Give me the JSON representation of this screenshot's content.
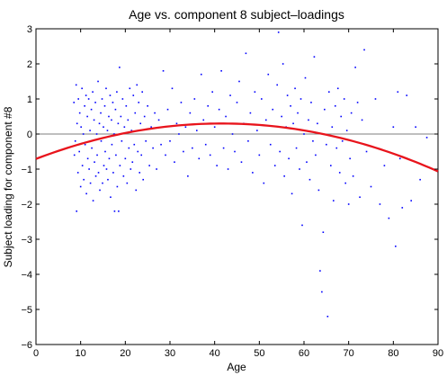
{
  "chart_data": {
    "type": "scatter",
    "title": "Age vs. component 8 subject–loadings",
    "xlabel": "Age",
    "ylabel": "Subject loading for component #8",
    "xlim": [
      0,
      90
    ],
    "ylim": [
      -6,
      3
    ],
    "x_ticks": [
      0,
      10,
      20,
      30,
      40,
      50,
      60,
      70,
      80,
      90
    ],
    "y_ticks": [
      3,
      2,
      1,
      0,
      -1,
      -2,
      -3,
      -4,
      -5,
      -6
    ],
    "grid": false,
    "zero_line": true,
    "series": [
      {
        "kind": "points",
        "color": "#0000ff",
        "points": [
          [
            8.5,
            0.9
          ],
          [
            8.6,
            -0.6
          ],
          [
            8.8,
            -0.2
          ],
          [
            9.0,
            1.4
          ],
          [
            9.1,
            -2.2
          ],
          [
            9.2,
            0.3
          ],
          [
            9.4,
            -1.1
          ],
          [
            9.5,
            1.0
          ],
          [
            9.7,
            -0.5
          ],
          [
            9.8,
            0.6
          ],
          [
            10.0,
            -1.5
          ],
          [
            10.1,
            0.2
          ],
          [
            10.3,
            1.3
          ],
          [
            10.4,
            -0.9
          ],
          [
            10.6,
            0.0
          ],
          [
            10.7,
            -1.3
          ],
          [
            10.9,
            0.8
          ],
          [
            11.0,
            -0.3
          ],
          [
            11.2,
            1.1
          ],
          [
            11.3,
            -1.7
          ],
          [
            11.5,
            0.5
          ],
          [
            11.6,
            -0.7
          ],
          [
            11.8,
            1.0
          ],
          [
            11.9,
            -1.0
          ],
          [
            12.1,
            0.1
          ],
          [
            12.2,
            -1.4
          ],
          [
            12.4,
            0.7
          ],
          [
            12.5,
            -0.4
          ],
          [
            12.7,
            1.2
          ],
          [
            12.8,
            -1.9
          ],
          [
            13.0,
            0.4
          ],
          [
            13.1,
            -0.8
          ],
          [
            13.3,
            0.9
          ],
          [
            13.4,
            -1.2
          ],
          [
            13.6,
            0.0
          ],
          [
            13.7,
            -0.6
          ],
          [
            13.9,
            1.5
          ],
          [
            14.0,
            -1.1
          ],
          [
            14.2,
            0.3
          ],
          [
            14.3,
            -1.6
          ],
          [
            14.5,
            0.6
          ],
          [
            14.6,
            -0.2
          ],
          [
            14.8,
            1.0
          ],
          [
            14.9,
            -1.4
          ],
          [
            15.1,
            0.2
          ],
          [
            15.2,
            -0.9
          ],
          [
            15.4,
            0.8
          ],
          [
            15.5,
            -0.5
          ],
          [
            15.7,
            1.3
          ],
          [
            15.8,
            -1.0
          ],
          [
            16.0,
            0.1
          ],
          [
            16.1,
            -1.3
          ],
          [
            16.3,
            0.5
          ],
          [
            16.4,
            -0.7
          ],
          [
            16.6,
            1.1
          ],
          [
            16.7,
            -1.8
          ],
          [
            16.9,
            0.4
          ],
          [
            17.0,
            -0.3
          ],
          [
            17.2,
            0.9
          ],
          [
            17.3,
            -1.1
          ],
          [
            17.5,
            0.0
          ],
          [
            17.6,
            -2.2
          ],
          [
            17.8,
            0.7
          ],
          [
            17.9,
            -0.6
          ],
          [
            18.1,
            1.2
          ],
          [
            18.2,
            -1.5
          ],
          [
            18.4,
            0.3
          ],
          [
            18.5,
            -2.2
          ],
          [
            18.7,
            1.9
          ],
          [
            18.8,
            -0.9
          ],
          [
            19.0,
            0.5
          ],
          [
            19.2,
            -0.2
          ],
          [
            19.4,
            1.0
          ],
          [
            19.6,
            -1.2
          ],
          [
            19.8,
            0.2
          ],
          [
            20.0,
            -0.7
          ],
          [
            20.2,
            0.8
          ],
          [
            20.4,
            -1.4
          ],
          [
            20.6,
            0.4
          ],
          [
            20.8,
            -0.4
          ],
          [
            21.0,
            1.3
          ],
          [
            21.2,
            -1.0
          ],
          [
            21.4,
            0.1
          ],
          [
            21.6,
            -0.8
          ],
          [
            21.8,
            1.1
          ],
          [
            22.0,
            -0.3
          ],
          [
            22.2,
            0.6
          ],
          [
            22.4,
            -1.6
          ],
          [
            22.6,
            1.4
          ],
          [
            22.8,
            -0.5
          ],
          [
            23.0,
            0.9
          ],
          [
            23.2,
            -1.1
          ],
          [
            23.4,
            0.3
          ],
          [
            23.6,
            -0.6
          ],
          [
            23.8,
            1.2
          ],
          [
            24.0,
            -1.3
          ],
          [
            24.3,
            0.5
          ],
          [
            24.6,
            -0.2
          ],
          [
            25.0,
            0.8
          ],
          [
            25.4,
            -0.9
          ],
          [
            25.8,
            0.2
          ],
          [
            26.2,
            -0.4
          ],
          [
            26.6,
            0.6
          ],
          [
            27.0,
            -1.0
          ],
          [
            27.5,
            0.4
          ],
          [
            28.0,
            -0.3
          ],
          [
            28.5,
            1.8
          ],
          [
            29.0,
            -0.6
          ],
          [
            29.5,
            0.7
          ],
          [
            30.0,
            -0.2
          ],
          [
            30.5,
            1.3
          ],
          [
            31.0,
            -0.8
          ],
          [
            31.5,
            0.3
          ],
          [
            32.0,
            0.0
          ],
          [
            32.5,
            0.9
          ],
          [
            33.0,
            -0.5
          ],
          [
            33.5,
            0.2
          ],
          [
            34.0,
            -1.2
          ],
          [
            34.5,
            0.6
          ],
          [
            35.0,
            -0.4
          ],
          [
            35.5,
            1.0
          ],
          [
            36.0,
            0.1
          ],
          [
            36.5,
            -0.7
          ],
          [
            37.0,
            1.7
          ],
          [
            37.5,
            0.4
          ],
          [
            38.0,
            -0.3
          ],
          [
            38.5,
            0.8
          ],
          [
            39.0,
            -0.6
          ],
          [
            39.5,
            1.2
          ],
          [
            40.0,
            0.2
          ],
          [
            40.5,
            -0.9
          ],
          [
            41.0,
            0.7
          ],
          [
            41.5,
            1.8
          ],
          [
            42.0,
            -0.4
          ],
          [
            42.5,
            0.5
          ],
          [
            43.0,
            -1.0
          ],
          [
            43.5,
            1.1
          ],
          [
            44.0,
            0.0
          ],
          [
            44.5,
            -0.5
          ],
          [
            45.0,
            0.9
          ],
          [
            45.5,
            1.5
          ],
          [
            46.0,
            -0.8
          ],
          [
            46.5,
            0.3
          ],
          [
            47.0,
            2.3
          ],
          [
            47.5,
            -0.2
          ],
          [
            48.0,
            0.6
          ],
          [
            48.5,
            -1.1
          ],
          [
            49.0,
            1.2
          ],
          [
            49.5,
            0.1
          ],
          [
            50.0,
            -0.6
          ],
          [
            50.5,
            1.0
          ],
          [
            51.0,
            -1.4
          ],
          [
            51.5,
            0.4
          ],
          [
            52.0,
            1.7
          ],
          [
            52.5,
            -0.3
          ],
          [
            53.0,
            0.7
          ],
          [
            53.5,
            -0.9
          ],
          [
            54.0,
            1.4
          ],
          [
            54.3,
            2.9
          ],
          [
            54.6,
            -0.5
          ],
          [
            55.0,
            0.5
          ],
          [
            55.3,
            2.0
          ],
          [
            55.6,
            -1.2
          ],
          [
            56.0,
            0.2
          ],
          [
            56.3,
            1.1
          ],
          [
            56.6,
            -0.7
          ],
          [
            57.0,
            0.8
          ],
          [
            57.3,
            -1.7
          ],
          [
            57.6,
            0.3
          ],
          [
            58.0,
            1.3
          ],
          [
            58.3,
            -0.4
          ],
          [
            58.6,
            0.6
          ],
          [
            59.0,
            -1.0
          ],
          [
            59.3,
            1.0
          ],
          [
            59.6,
            -2.6
          ],
          [
            60.0,
            0.0
          ],
          [
            60.3,
            1.6
          ],
          [
            60.6,
            -0.8
          ],
          [
            61.0,
            0.4
          ],
          [
            61.3,
            -1.3
          ],
          [
            61.6,
            0.9
          ],
          [
            62.0,
            -0.2
          ],
          [
            62.3,
            2.2
          ],
          [
            62.6,
            -0.6
          ],
          [
            63.0,
            0.3
          ],
          [
            63.3,
            -1.6
          ],
          [
            63.6,
            -3.9
          ],
          [
            64.0,
            -4.5
          ],
          [
            64.3,
            -2.8
          ],
          [
            64.6,
            0.7
          ],
          [
            65.0,
            -0.3
          ],
          [
            65.3,
            -5.2
          ],
          [
            65.6,
            1.2
          ],
          [
            66.0,
            -0.9
          ],
          [
            66.3,
            0.2
          ],
          [
            66.6,
            -1.9
          ],
          [
            67.0,
            0.8
          ],
          [
            67.3,
            -0.4
          ],
          [
            67.6,
            1.3
          ],
          [
            68.0,
            -1.1
          ],
          [
            68.3,
            0.5
          ],
          [
            68.6,
            -0.2
          ],
          [
            69.0,
            1.0
          ],
          [
            69.3,
            -1.4
          ],
          [
            69.6,
            0.1
          ],
          [
            70.0,
            -2.0
          ],
          [
            70.3,
            -0.7
          ],
          [
            70.6,
            0.6
          ],
          [
            71.0,
            -1.2
          ],
          [
            71.5,
            1.9
          ],
          [
            72.0,
            0.9
          ],
          [
            72.5,
            -1.8
          ],
          [
            73.0,
            0.4
          ],
          [
            73.5,
            2.4
          ],
          [
            74.0,
            -0.5
          ],
          [
            75.0,
            -1.5
          ],
          [
            76.0,
            1.0
          ],
          [
            77.0,
            -2.0
          ],
          [
            78.0,
            -0.9
          ],
          [
            79.0,
            -2.4
          ],
          [
            80.0,
            0.2
          ],
          [
            80.5,
            -3.2
          ],
          [
            81.0,
            1.2
          ],
          [
            81.5,
            -0.7
          ],
          [
            82.0,
            -2.1
          ],
          [
            83.0,
            1.1
          ],
          [
            84.0,
            -1.9
          ],
          [
            85.0,
            0.2
          ],
          [
            86.0,
            -1.3
          ],
          [
            87.5,
            -0.1
          ]
        ]
      },
      {
        "kind": "curve",
        "color": "#e8141c",
        "fit": "quadratic",
        "coefficients": {
          "a": -0.0005827,
          "b": 0.04848,
          "c": -0.7083
        },
        "x_range": [
          0,
          90
        ]
      }
    ]
  }
}
